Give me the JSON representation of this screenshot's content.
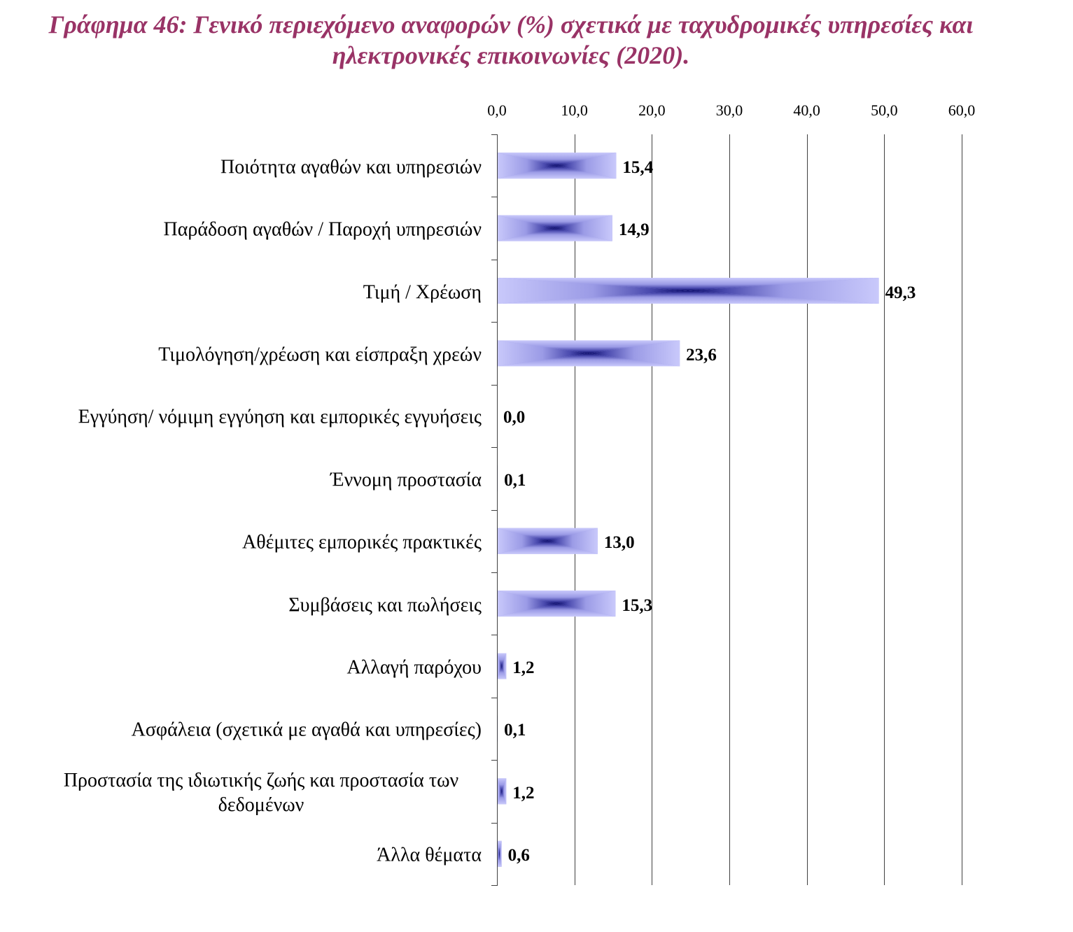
{
  "colors": {
    "title": "#993366",
    "bar_edge": "#c9c9fb",
    "bar_mid": "#9b9be6",
    "bar_inner": "#4a4aae",
    "bar_center": "#0a0a6a",
    "gridline": "#404040",
    "axis": "#404040",
    "text": "#000000"
  },
  "chart_data": {
    "type": "bar",
    "horizontal": true,
    "x_axis_on_top": true,
    "grid": true,
    "title": "Γράφημα 46: Γενικό περιεχόμενο αναφορών (%) σχετικά με ταχυδρομικές υπηρεσίες και ηλεκτρονικές επικοινωνίες (2020).",
    "xlabel": "",
    "ylabel": "",
    "xlim": [
      0,
      60
    ],
    "x_ticks": [
      0,
      10,
      20,
      30,
      40,
      50,
      60
    ],
    "x_tick_labels": [
      "0,0",
      "10,0",
      "20,0",
      "30,0",
      "40,0",
      "50,0",
      "60,0"
    ],
    "categories": [
      "Ποιότητα αγαθών και υπηρεσιών",
      "Παράδοση αγαθών / Παροχή υπηρεσιών",
      "Τιμή / Χρέωση",
      "Τιμολόγηση/χρέωση και είσπραξη χρεών",
      "Εγγύηση/ νόμιμη εγγύηση και εμπορικές εγγυήσεις",
      "Έννομη προστασία",
      "Αθέμιτες εμπορικές πρακτικές",
      "Συμβάσεις και πωλήσεις",
      "Αλλαγή παρόχου",
      "Ασφάλεια (σχετικά με αγαθά και υπηρεσίες)",
      "Προστασία της ιδιωτικής ζωής και προστασία των δεδομένων",
      "Άλλα θέματα"
    ],
    "values": [
      15.4,
      14.9,
      49.3,
      23.6,
      0.0,
      0.1,
      13.0,
      15.3,
      1.2,
      0.1,
      1.2,
      0.6
    ],
    "value_labels": [
      "15,4",
      "14,9",
      "49,3",
      "23,6",
      "0,0",
      "0,1",
      "13,0",
      "15,3",
      "1,2",
      "0,1",
      "1,2",
      "0,6"
    ]
  }
}
